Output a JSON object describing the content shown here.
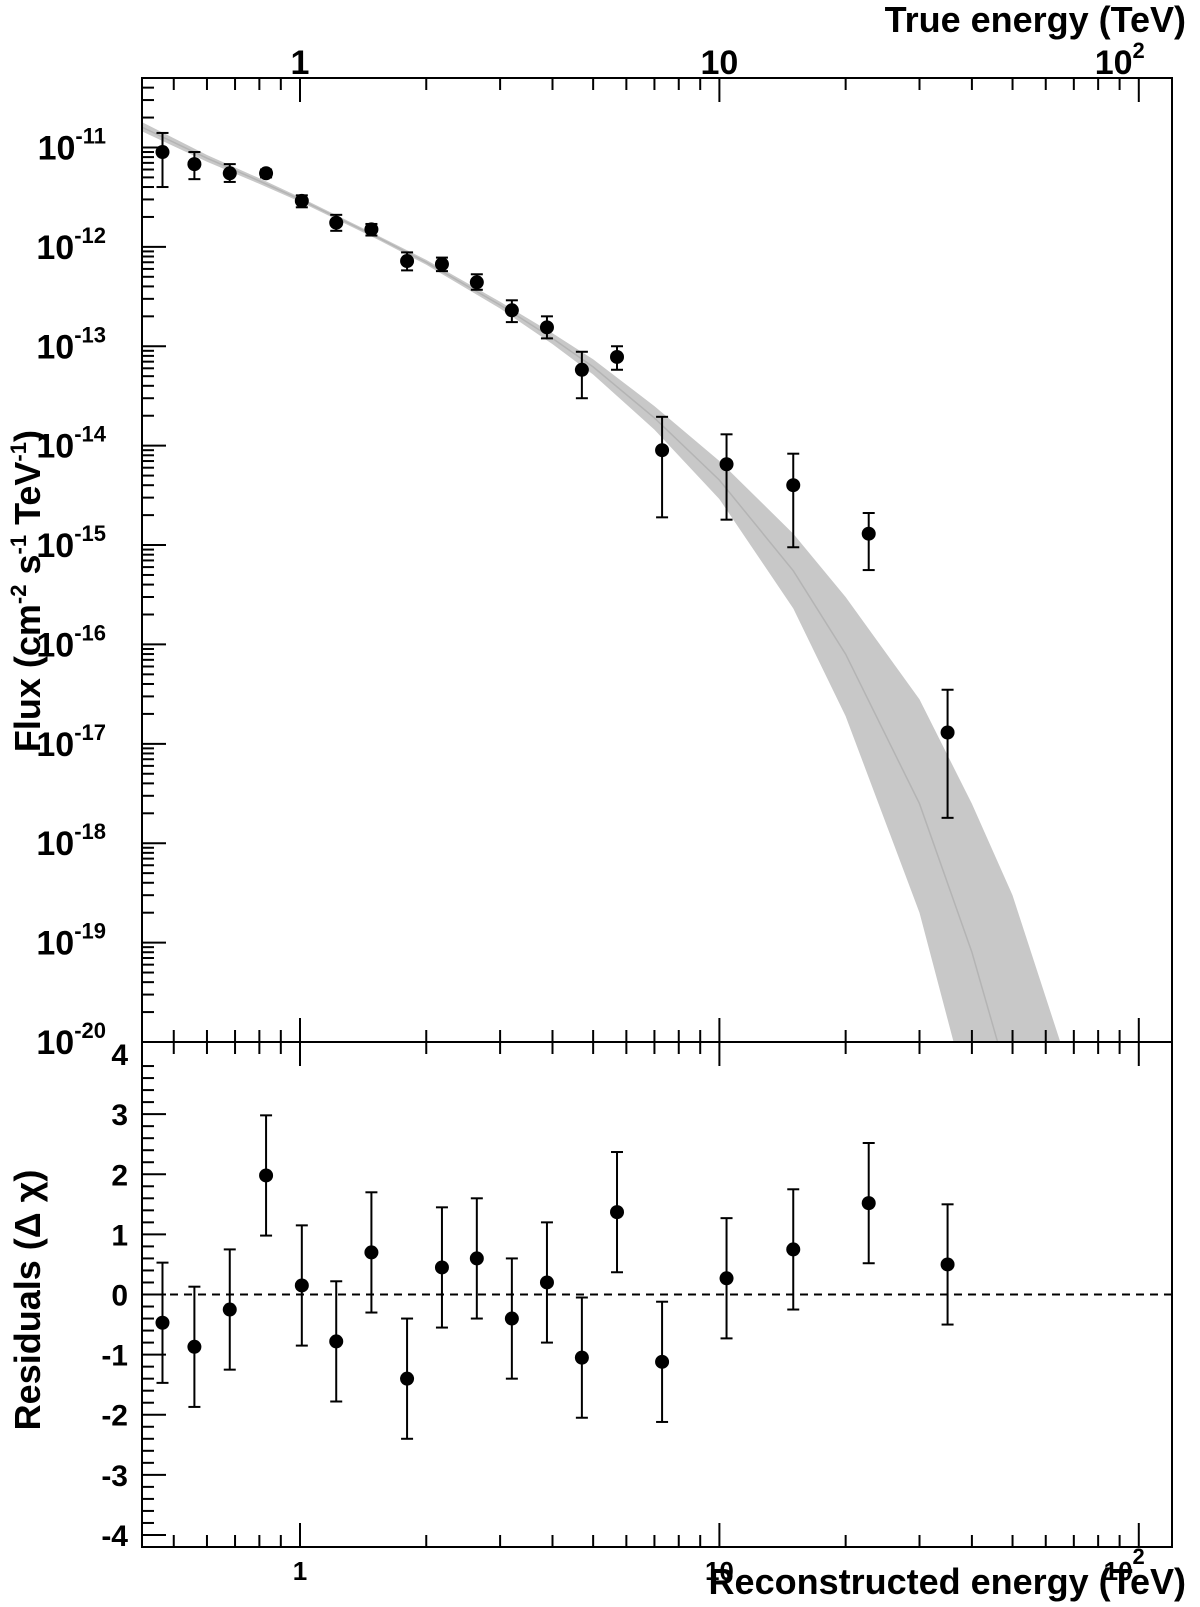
{
  "chart_data": [
    {
      "type": "scatter",
      "panel": "flux",
      "xscale": "log",
      "yscale": "log",
      "xlim": [
        0.42,
        120
      ],
      "ylim": [
        1e-20,
        5e-11
      ],
      "top_axis_title": "True energy (TeV)",
      "ylabel_parts": [
        "Flux (cm",
        "-2",
        " s",
        "-1",
        " TeV",
        "-1",
        ")"
      ],
      "x_tick_labels": [
        {
          "value": 1,
          "base": "1",
          "exp": ""
        },
        {
          "value": 10,
          "base": "10",
          "exp": ""
        },
        {
          "value": 100,
          "base": "10",
          "exp": "2"
        }
      ],
      "y_tick_labels": [
        {
          "value": 1e-11,
          "base": "10",
          "exp": "-11"
        },
        {
          "value": 1e-12,
          "base": "10",
          "exp": "-12"
        },
        {
          "value": 1e-13,
          "base": "10",
          "exp": "-13"
        },
        {
          "value": 1e-14,
          "base": "10",
          "exp": "-14"
        },
        {
          "value": 1e-15,
          "base": "10",
          "exp": "-15"
        },
        {
          "value": 1e-16,
          "base": "10",
          "exp": "-16"
        },
        {
          "value": 1e-17,
          "base": "10",
          "exp": "-17"
        },
        {
          "value": 1e-18,
          "base": "10",
          "exp": "-18"
        },
        {
          "value": 1e-19,
          "base": "10",
          "exp": "-19"
        },
        {
          "value": 1e-20,
          "base": "10",
          "exp": "-20"
        }
      ],
      "points": [
        {
          "x": 0.47,
          "y": 9e-12,
          "ylo": 4e-12,
          "yhi": 1.4e-11
        },
        {
          "x": 0.56,
          "y": 6.8e-12,
          "ylo": 4.8e-12,
          "yhi": 9e-12
        },
        {
          "x": 0.68,
          "y": 5.5e-12,
          "ylo": 4.5e-12,
          "yhi": 6.8e-12
        },
        {
          "x": 0.83,
          "y": 5.5e-12,
          "ylo": 5e-12,
          "yhi": 6e-12
        },
        {
          "x": 1.01,
          "y": 2.9e-12,
          "ylo": 2.5e-12,
          "yhi": 3.3e-12
        },
        {
          "x": 1.22,
          "y": 1.75e-12,
          "ylo": 1.45e-12,
          "yhi": 2.1e-12
        },
        {
          "x": 1.48,
          "y": 1.5e-12,
          "ylo": 1.3e-12,
          "yhi": 1.7e-12
        },
        {
          "x": 1.8,
          "y": 7.2e-13,
          "ylo": 5.8e-13,
          "yhi": 8.8e-13
        },
        {
          "x": 2.18,
          "y": 6.7e-13,
          "ylo": 5.7e-13,
          "yhi": 7.8e-13
        },
        {
          "x": 2.64,
          "y": 4.4e-13,
          "ylo": 3.7e-13,
          "yhi": 5.3e-13
        },
        {
          "x": 3.2,
          "y": 2.3e-13,
          "ylo": 1.75e-13,
          "yhi": 2.9e-13
        },
        {
          "x": 3.88,
          "y": 1.55e-13,
          "ylo": 1.2e-13,
          "yhi": 2e-13
        },
        {
          "x": 4.7,
          "y": 5.8e-14,
          "ylo": 3e-14,
          "yhi": 8.8e-14
        },
        {
          "x": 5.7,
          "y": 7.8e-14,
          "ylo": 5.8e-14,
          "yhi": 1e-13
        },
        {
          "x": 7.3,
          "y": 9e-15,
          "ylo": 1.9e-15,
          "yhi": 1.95e-14
        },
        {
          "x": 10.4,
          "y": 6.5e-15,
          "ylo": 1.8e-15,
          "yhi": 1.3e-14
        },
        {
          "x": 15.0,
          "y": 4e-15,
          "ylo": 9.5e-16,
          "yhi": 8.3e-15
        },
        {
          "x": 22.7,
          "y": 1.3e-15,
          "ylo": 5.6e-16,
          "yhi": 2.1e-15
        },
        {
          "x": 35.0,
          "y": 1.3e-17,
          "ylo": 1.8e-18,
          "yhi": 3.5e-17
        }
      ],
      "model_band": {
        "x": [
          0.42,
          0.6,
          0.8,
          1.0,
          1.5,
          2.0,
          3.0,
          4.0,
          5.0,
          7.0,
          10.0,
          15.0,
          20.0,
          30.0,
          40.0,
          50.0,
          65.0
        ],
        "center": [
          1.6e-11,
          7.8e-12,
          4.6e-12,
          3e-12,
          1.3e-12,
          7e-13,
          2.6e-13,
          1.2e-13,
          6.2e-14,
          1.9e-14,
          4.5e-15,
          5.5e-16,
          8e-17,
          2.5e-18,
          8e-20,
          3e-21,
          1e-22
        ],
        "lower": [
          1.45e-11,
          7.2e-12,
          4.3e-12,
          2.85e-12,
          1.24e-12,
          6.6e-13,
          2.4e-13,
          1.05e-13,
          5.2e-14,
          1.45e-14,
          2.9e-15,
          2.3e-16,
          1.9e-17,
          2e-19,
          2e-21,
          1e-22,
          1e-24
        ],
        "upper": [
          1.8e-11,
          8.4e-12,
          4.9e-12,
          3.15e-12,
          1.36e-12,
          7.4e-13,
          2.8e-13,
          1.35e-13,
          7.4e-14,
          2.5e-14,
          7e-15,
          1.3e-15,
          3e-16,
          2.8e-17,
          2.5e-18,
          3e-19,
          1e-20
        ],
        "color": "#c8c8c8"
      }
    },
    {
      "type": "scatter",
      "panel": "residuals",
      "xscale": "log",
      "yscale": "linear",
      "xlim": [
        0.42,
        120
      ],
      "ylim": [
        -4.2,
        4.2
      ],
      "xlabel": "Reconstructed energy (TeV)",
      "ylabel": "Residuals (Δ  χ)",
      "reference_line": 0,
      "x_tick_labels": [
        {
          "value": 1,
          "base": "1",
          "exp": ""
        },
        {
          "value": 10,
          "base": "10",
          "exp": ""
        },
        {
          "value": 100,
          "base": "10",
          "exp": "2"
        }
      ],
      "y_tick_labels": [
        {
          "value": 4,
          "label": "4"
        },
        {
          "value": 3,
          "label": "3"
        },
        {
          "value": 2,
          "label": "2"
        },
        {
          "value": 1,
          "label": "1"
        },
        {
          "value": 0,
          "label": "0"
        },
        {
          "value": -1,
          "label": "-1"
        },
        {
          "value": -2,
          "label": "-2"
        },
        {
          "value": -3,
          "label": "-3"
        },
        {
          "value": -4,
          "label": "-4"
        }
      ],
      "points": [
        {
          "x": 0.47,
          "y": -0.47,
          "err": 1.0
        },
        {
          "x": 0.56,
          "y": -0.87,
          "err": 1.0
        },
        {
          "x": 0.68,
          "y": -0.25,
          "err": 1.0
        },
        {
          "x": 0.83,
          "y": 1.98,
          "err": 1.0
        },
        {
          "x": 1.01,
          "y": 0.15,
          "err": 1.0
        },
        {
          "x": 1.22,
          "y": -0.78,
          "err": 1.0
        },
        {
          "x": 1.48,
          "y": 0.7,
          "err": 1.0
        },
        {
          "x": 1.8,
          "y": -1.4,
          "err": 1.0
        },
        {
          "x": 2.18,
          "y": 0.45,
          "err": 1.0
        },
        {
          "x": 2.64,
          "y": 0.6,
          "err": 1.0
        },
        {
          "x": 3.2,
          "y": -0.4,
          "err": 1.0
        },
        {
          "x": 3.88,
          "y": 0.2,
          "err": 1.0
        },
        {
          "x": 4.7,
          "y": -1.05,
          "err": 1.0
        },
        {
          "x": 5.7,
          "y": 1.37,
          "err": 1.0
        },
        {
          "x": 7.3,
          "y": -1.12,
          "err": 1.0
        },
        {
          "x": 10.4,
          "y": 0.27,
          "err": 1.0
        },
        {
          "x": 15.0,
          "y": 0.75,
          "err": 1.0
        },
        {
          "x": 22.7,
          "y": 1.52,
          "err": 1.0
        },
        {
          "x": 35.0,
          "y": 0.5,
          "err": 1.0
        }
      ]
    }
  ]
}
